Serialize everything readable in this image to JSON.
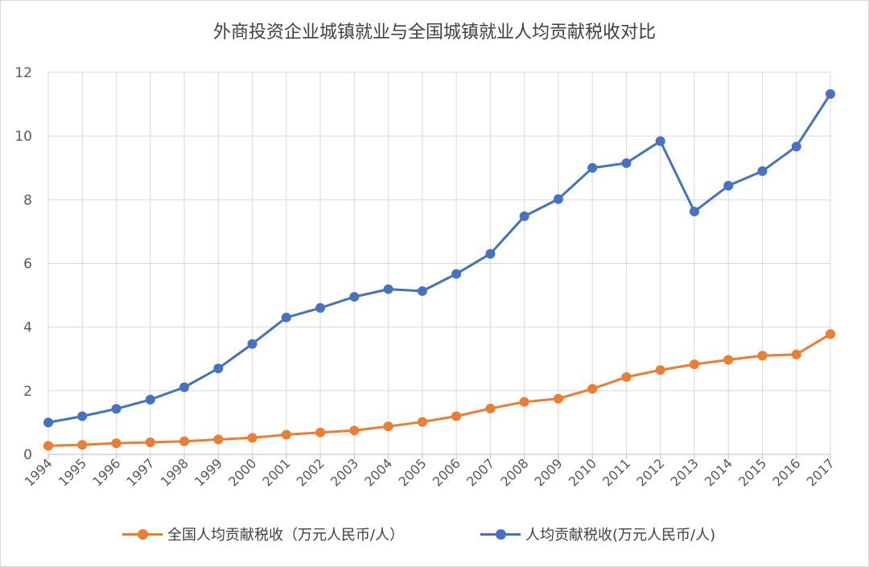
{
  "chart_data": {
    "type": "line",
    "title": "外商投资企业城镇就业与全国城镇就业人均贡献税收对比",
    "xlabel": "",
    "ylabel": "",
    "ylim": [
      0,
      12
    ],
    "yticks": [
      "0",
      "2",
      "4",
      "6",
      "8",
      "10",
      "12"
    ],
    "grid": true,
    "legend_position": "bottom",
    "categories": [
      "1994",
      "1995",
      "1996",
      "1997",
      "1998",
      "1999",
      "2000",
      "2001",
      "2002",
      "2003",
      "2004",
      "2005",
      "2006",
      "2007",
      "2008",
      "2009",
      "2010",
      "2011",
      "2012",
      "2013",
      "2014",
      "2015",
      "2016",
      "2017"
    ],
    "series": [
      {
        "name": "全国人均贡献税收（万元人民币/人）",
        "color": "#ed7d31",
        "values": [
          0.27,
          0.3,
          0.35,
          0.38,
          0.41,
          0.47,
          0.52,
          0.62,
          0.69,
          0.75,
          0.88,
          1.02,
          1.2,
          1.44,
          1.65,
          1.75,
          2.06,
          2.43,
          2.65,
          2.83,
          2.97,
          3.1,
          3.14,
          3.78
        ]
      },
      {
        "name": "人均贡献税收(万元人民币/人)",
        "color": "#4472c4",
        "values": [
          1.0,
          1.2,
          1.43,
          1.72,
          2.11,
          2.7,
          3.47,
          4.3,
          4.6,
          4.95,
          5.19,
          5.13,
          5.67,
          6.3,
          7.48,
          8.02,
          9.0,
          9.15,
          9.84,
          7.63,
          8.44,
          8.9,
          9.67,
          11.32
        ]
      }
    ]
  }
}
